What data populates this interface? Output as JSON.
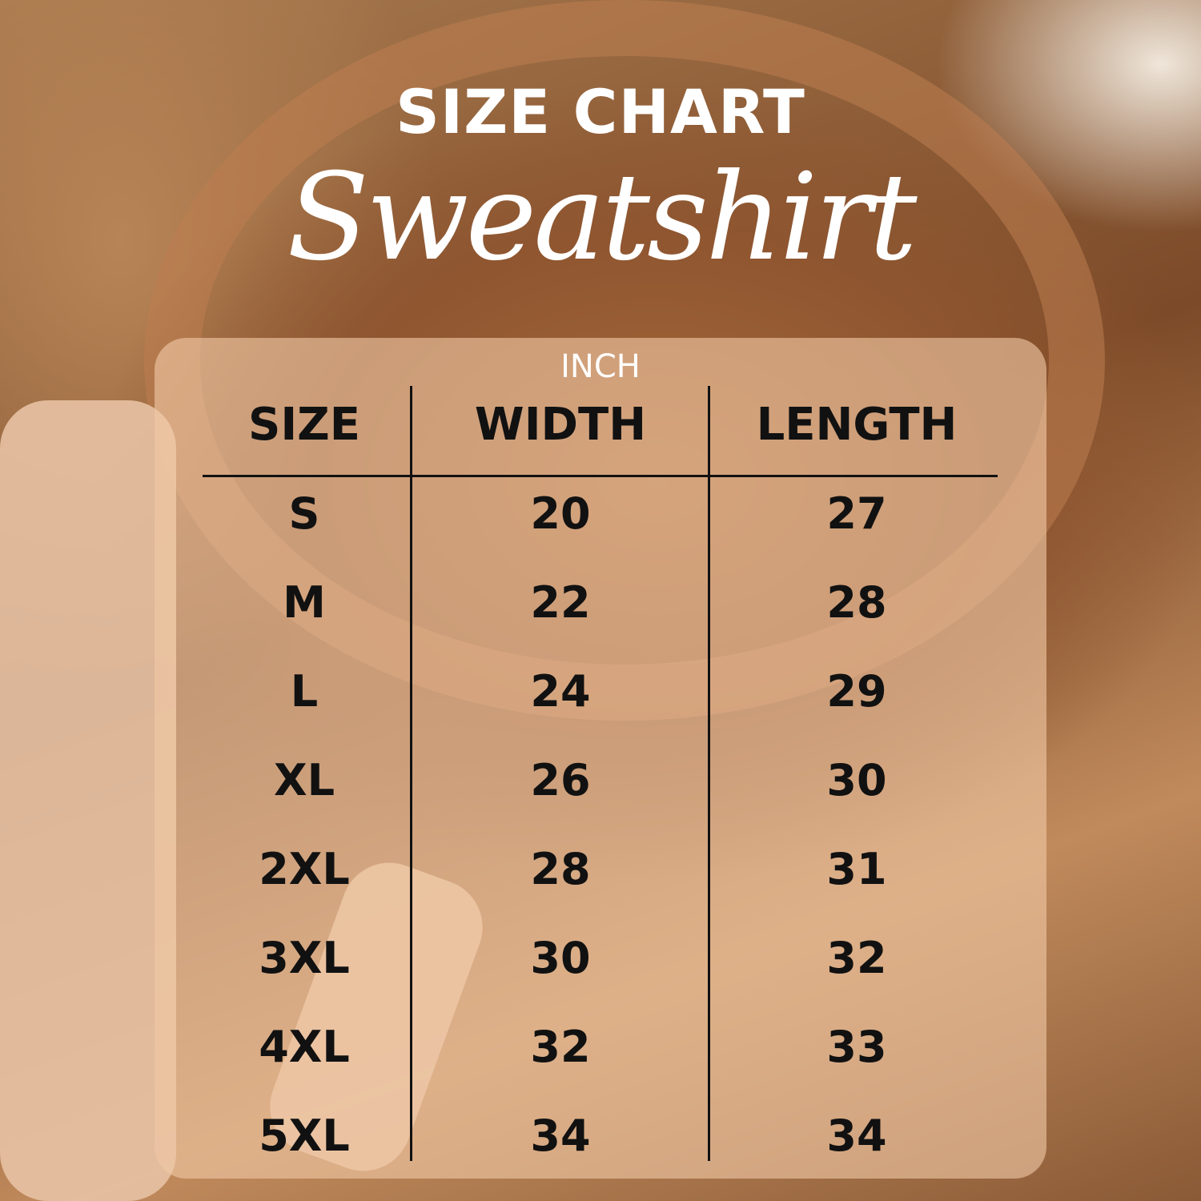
{
  "title": "SIZE CHART",
  "subtitle": "Sweatshirt",
  "unit": "INCH",
  "headers": [
    "SIZE",
    "WIDTH",
    "LENGTH"
  ],
  "rows": [
    [
      "S",
      "20",
      "27"
    ],
    [
      "M",
      "22",
      "28"
    ],
    [
      "L",
      "24",
      "29"
    ],
    [
      "XL",
      "26",
      "30"
    ],
    [
      "2XL",
      "28",
      "31"
    ],
    [
      "3XL",
      "30",
      "32"
    ],
    [
      "4XL",
      "32",
      "33"
    ],
    [
      "5XL",
      "34",
      "34"
    ]
  ]
}
